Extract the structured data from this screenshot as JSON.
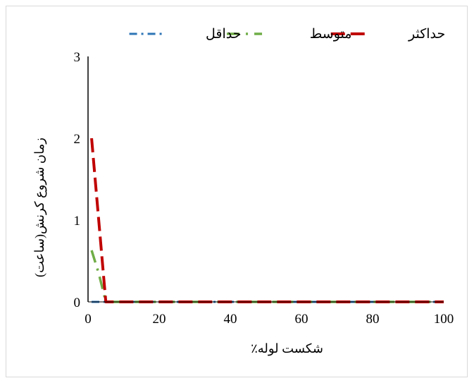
{
  "chart_data": {
    "type": "line",
    "title": "",
    "xlabel": "٪شکست لوله",
    "ylabel": "زمان شروع کرنش(ساعت)",
    "xlim": [
      0,
      100
    ],
    "ylim": [
      0,
      3
    ],
    "x_ticks": [
      0,
      20,
      40,
      60,
      80,
      100
    ],
    "y_ticks": [
      0,
      1,
      2,
      3
    ],
    "grid": false,
    "legend_position": "top",
    "series": [
      {
        "name": "حداقل",
        "color": "#2e75b6",
        "dash": "dash-dot",
        "x": [
          1,
          100
        ],
        "y": [
          0,
          0
        ]
      },
      {
        "name": "متوسط",
        "color": "#70ad47",
        "dash": "long-dash-dot",
        "x": [
          1,
          3,
          5,
          100
        ],
        "y": [
          0.63,
          0.35,
          0,
          0
        ]
      },
      {
        "name": "حداکثر",
        "color": "#c00000",
        "dash": "dash",
        "x": [
          1,
          5,
          100
        ],
        "y": [
          2.0,
          0,
          0
        ]
      }
    ]
  }
}
